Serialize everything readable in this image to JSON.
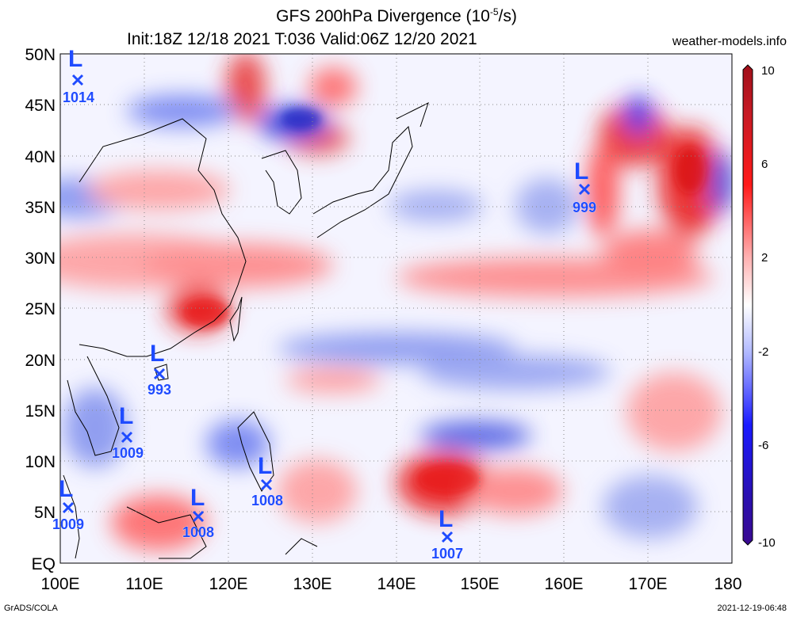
{
  "header": {
    "title_line1": "GFS 200hPa Divergence (10",
    "title_exp": "-5",
    "title_unit": "/s)",
    "title_line2": "Init:18Z 12/18 2021 T:036 Valid:06Z 12/20 2021",
    "site": "weather-models.info"
  },
  "footer": {
    "credit": "GrADS/COLA",
    "timestamp": "2021-12-19-06:48"
  },
  "lat_labels": [
    "50N",
    "45N",
    "40N",
    "35N",
    "30N",
    "25N",
    "20N",
    "15N",
    "10N",
    "5N",
    "EQ"
  ],
  "lon_labels": [
    "100E",
    "110E",
    "120E",
    "130E",
    "140E",
    "150E",
    "160E",
    "170E",
    "180"
  ],
  "colorbar": {
    "labels": [
      "10",
      "6",
      "2",
      "-2",
      "-6",
      "-10"
    ]
  },
  "lows": [
    {
      "pressure": "1014"
    },
    {
      "pressure": "999"
    },
    {
      "pressure": "993"
    },
    {
      "pressure": "1009"
    },
    {
      "pressure": "1008"
    },
    {
      "pressure": "1009"
    },
    {
      "pressure": "1008"
    },
    {
      "pressure": "1007"
    }
  ],
  "colors": {
    "positive": "#e8202a",
    "negative": "#1f3fe0",
    "low_marker": "#1f4bff"
  }
}
